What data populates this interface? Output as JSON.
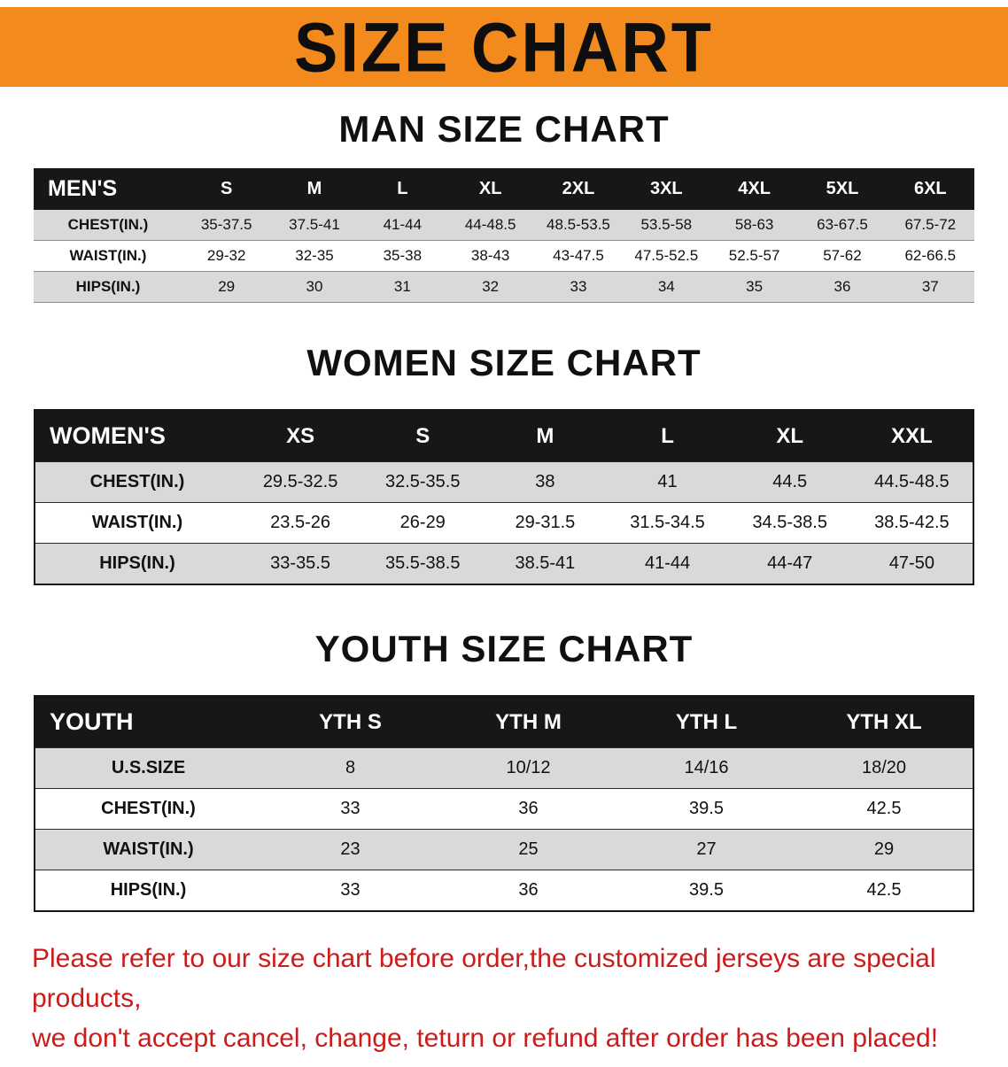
{
  "banner": {
    "title": "SIZE CHART",
    "bg_color": "#f28a1d",
    "text_color": "#0e0e0e"
  },
  "sections": [
    {
      "heading": "MAN SIZE CHART",
      "table": {
        "corner_label": "MEN'S",
        "columns": [
          "S",
          "M",
          "L",
          "XL",
          "2XL",
          "3XL",
          "4XL",
          "5XL",
          "6XL"
        ],
        "rows": [
          {
            "label": "CHEST(IN.)",
            "values": [
              "35-37.5",
              "37.5-41",
              "41-44",
              "44-48.5",
              "48.5-53.5",
              "53.5-58",
              "58-63",
              "63-67.5",
              "67.5-72"
            ]
          },
          {
            "label": "WAIST(IN.)",
            "values": [
              "29-32",
              "32-35",
              "35-38",
              "38-43",
              "43-47.5",
              "47.5-52.5",
              "52.5-57",
              "57-62",
              "62-66.5"
            ]
          },
          {
            "label": "HIPS(IN.)",
            "values": [
              "29",
              "30",
              "31",
              "32",
              "33",
              "34",
              "35",
              "36",
              "37"
            ]
          }
        ]
      }
    },
    {
      "heading": "WOMEN SIZE CHART",
      "table": {
        "corner_label": "WOMEN'S",
        "columns": [
          "XS",
          "S",
          "M",
          "L",
          "XL",
          "XXL"
        ],
        "rows": [
          {
            "label": "CHEST(IN.)",
            "values": [
              "29.5-32.5",
              "32.5-35.5",
              "38",
              "41",
              "44.5",
              "44.5-48.5"
            ]
          },
          {
            "label": "WAIST(IN.)",
            "values": [
              "23.5-26",
              "26-29",
              "29-31.5",
              "31.5-34.5",
              "34.5-38.5",
              "38.5-42.5"
            ]
          },
          {
            "label": "HIPS(IN.)",
            "values": [
              "33-35.5",
              "35.5-38.5",
              "38.5-41",
              "41-44",
              "44-47",
              "47-50"
            ]
          }
        ]
      }
    },
    {
      "heading": "YOUTH SIZE CHART",
      "table": {
        "corner_label": "YOUTH",
        "columns": [
          "YTH S",
          "YTH M",
          "YTH L",
          "YTH XL"
        ],
        "rows": [
          {
            "label": "U.S.SIZE",
            "values": [
              "8",
              "10/12",
              "14/16",
              "18/20"
            ]
          },
          {
            "label": "CHEST(IN.)",
            "values": [
              "33",
              "36",
              "39.5",
              "42.5"
            ]
          },
          {
            "label": "WAIST(IN.)",
            "values": [
              "23",
              "25",
              "27",
              "29"
            ]
          },
          {
            "label": "HIPS(IN.)",
            "values": [
              "33",
              "36",
              "39.5",
              "42.5"
            ]
          }
        ]
      }
    }
  ],
  "disclaimer": {
    "lines": [
      "Please refer to our size chart before order,the customized jerseys are special products,",
      "we don't accept cancel, change, teturn or refund after order has been placed!"
    ],
    "text_color": "#cb1b1b"
  }
}
